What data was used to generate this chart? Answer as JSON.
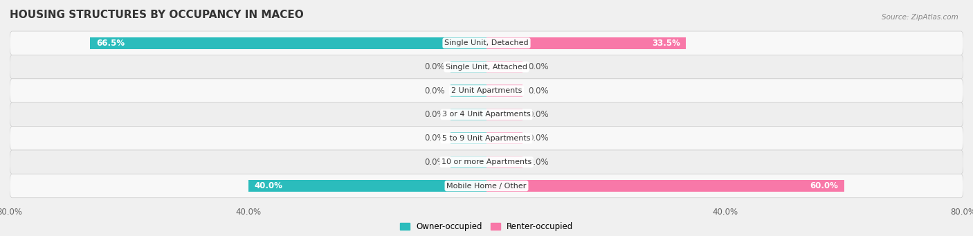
{
  "title": "HOUSING STRUCTURES BY OCCUPANCY IN MACEO",
  "source": "Source: ZipAtlas.com",
  "categories": [
    "Single Unit, Detached",
    "Single Unit, Attached",
    "2 Unit Apartments",
    "3 or 4 Unit Apartments",
    "5 to 9 Unit Apartments",
    "10 or more Apartments",
    "Mobile Home / Other"
  ],
  "owner_values": [
    66.5,
    0.0,
    0.0,
    0.0,
    0.0,
    0.0,
    40.0
  ],
  "renter_values": [
    33.5,
    0.0,
    0.0,
    0.0,
    0.0,
    0.0,
    60.0
  ],
  "owner_color": "#2bbcbc",
  "renter_color": "#f878a8",
  "owner_zero_color": "#88d8d8",
  "renter_zero_color": "#f8b8d0",
  "bg_color": "#f0f0f0",
  "row_colors": [
    "#f8f8f8",
    "#eeeeee"
  ],
  "title_fontsize": 11,
  "axis_max": 80.0,
  "bar_height": 0.5,
  "zero_stub": 6.0,
  "label_fontsize": 8.5
}
